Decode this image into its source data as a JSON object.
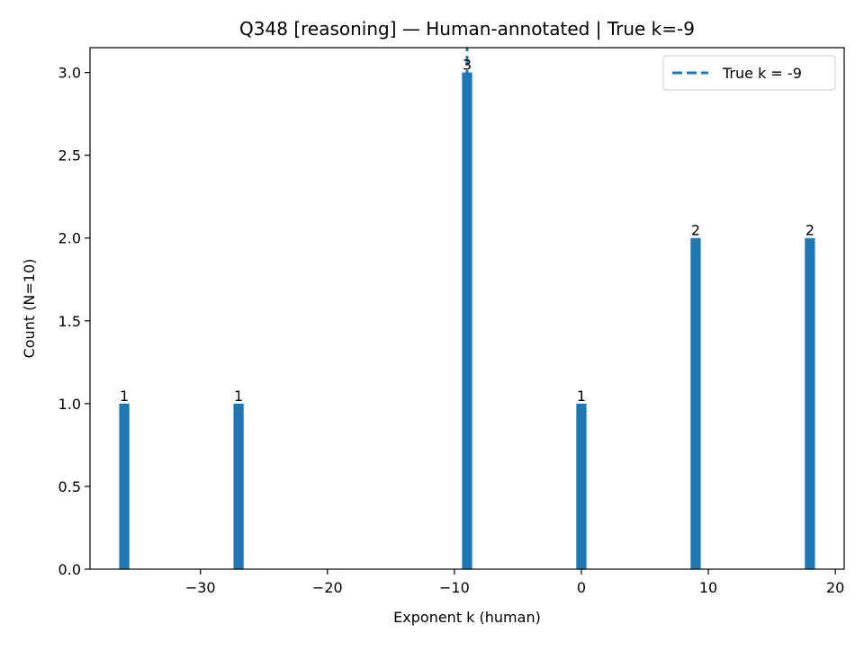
{
  "chart_data": {
    "type": "bar",
    "title": "Q348 [reasoning] — Human-annotated | True k=-9",
    "xlabel": "Exponent k (human)",
    "ylabel": "Count (N=10)",
    "x": [
      -36,
      -27,
      -9,
      0,
      9,
      18
    ],
    "values": [
      1,
      1,
      3,
      1,
      2,
      2
    ],
    "data_labels": [
      "1",
      "1",
      "3",
      "1",
      "2",
      "2"
    ],
    "bar_width": 0.8,
    "xlim": [
      -38.7,
      20.7
    ],
    "ylim": [
      0,
      3.15
    ],
    "xticks": [
      -30,
      -20,
      -10,
      0,
      10,
      20
    ],
    "xtick_labels": [
      "−30",
      "−20",
      "−10",
      "0",
      "10",
      "20"
    ],
    "yticks": [
      0,
      0.5,
      1,
      1.5,
      2,
      2.5,
      3
    ],
    "ytick_labels": [
      "0.0",
      "0.5",
      "1.0",
      "1.5",
      "2.0",
      "2.5",
      "3.0"
    ],
    "reference_line": {
      "x": -9,
      "style": "dashed",
      "label": "True k = -9"
    },
    "legend_position": "top-right",
    "grid": false,
    "colors": {
      "bar": "#1f77b4",
      "reference_line": "#1f77b4",
      "axes": "#000000"
    }
  }
}
